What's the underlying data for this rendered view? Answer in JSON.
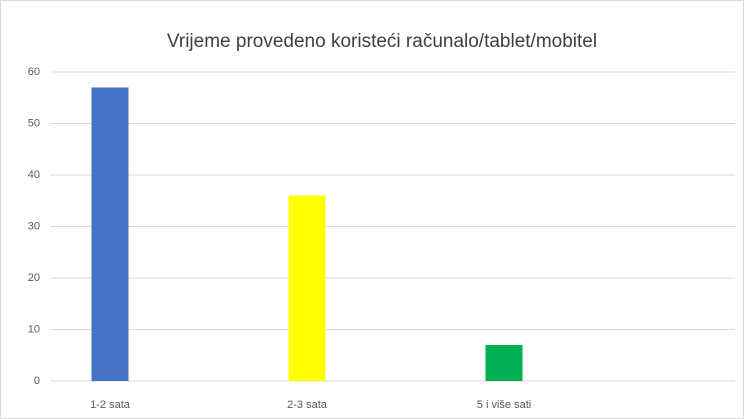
{
  "chart_data": {
    "type": "bar",
    "title": "Vrijeme provedeno koristeći računalo/tablet/mobitel",
    "categories": [
      "1-2 sata",
      "2-3 sata",
      "5 i više sati"
    ],
    "values": [
      57,
      36,
      7
    ],
    "colors": [
      "#4472c4",
      "#ffff00",
      "#00b050"
    ],
    "ylim": [
      0,
      60
    ],
    "yticks": [
      0,
      10,
      20,
      30,
      40,
      50,
      60
    ],
    "grid": true
  }
}
